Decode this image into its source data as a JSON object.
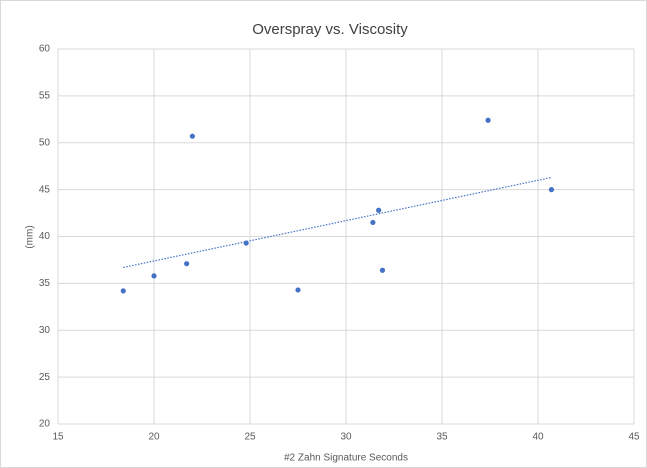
{
  "chart_data": {
    "type": "scatter",
    "title": "Overspray vs. Viscosity",
    "x_label": "#2 Zahn Signature Seconds",
    "y_label": "(mm)",
    "series": [
      {
        "color": "#4472c4",
        "x": [
          18.4,
          20,
          21.7,
          22,
          24.8,
          27.5,
          31.4,
          31.7,
          31.9,
          37.4,
          40.7
        ],
        "values": [
          34.2,
          35.8,
          37.1,
          50.7,
          39.3,
          34.3,
          41.5,
          42.8,
          36.4,
          52.4,
          45.0
        ]
      }
    ],
    "trendline": {
      "style": "dotted",
      "color": "#4472c4",
      "x": [
        18.4,
        40.7
      ],
      "values": [
        36.7,
        46.3
      ]
    },
    "xlim": [
      15,
      45
    ],
    "xticks": [
      15,
      20,
      25,
      30,
      35,
      40,
      45
    ],
    "ylim": [
      20,
      60
    ],
    "yticks": [
      20,
      25,
      30,
      35,
      40,
      45,
      50,
      55,
      60
    ],
    "grid": true
  }
}
